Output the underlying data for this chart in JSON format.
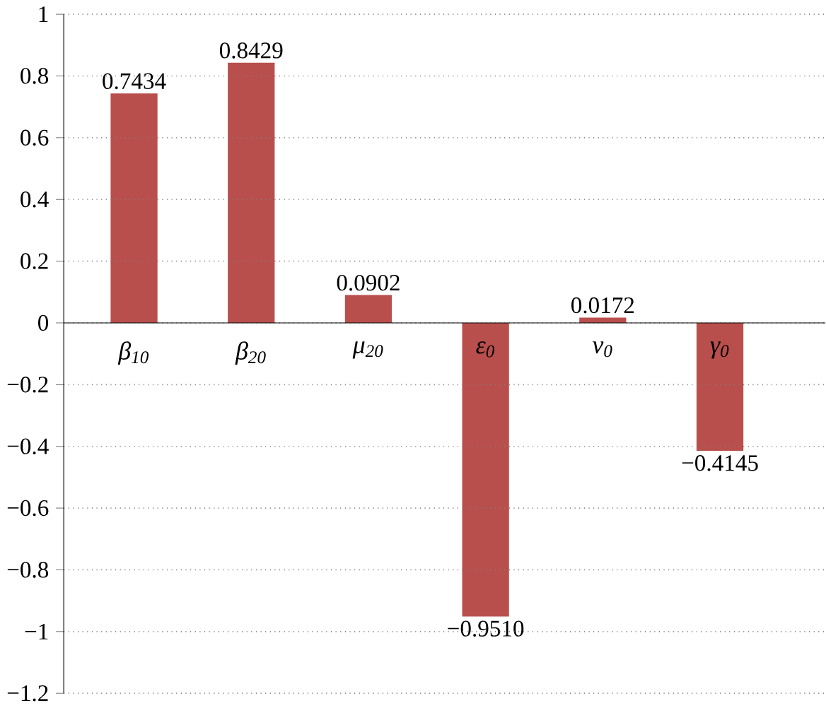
{
  "chart_data": {
    "type": "bar",
    "categories": [
      "β$_{10}$",
      "β$_{20}$",
      "μ$_{20}$",
      "ε$_{0}$",
      "ν$_{0}$",
      "γ$_{0}$"
    ],
    "values": [
      0.7434,
      0.8429,
      0.0902,
      -0.951,
      0.0172,
      -0.4145
    ],
    "value_labels": [
      "0.7434",
      "0.8429",
      "0.0902",
      "−0.9510",
      "0.0172",
      "−0.4145"
    ],
    "color": "#b94f4c",
    "ylim": [
      -1.2,
      1
    ],
    "yticks": [
      {
        "value": -1.2,
        "label": "−1.2"
      },
      {
        "value": -1,
        "label": "−1"
      },
      {
        "value": -0.8,
        "label": "−0.8"
      },
      {
        "value": -0.6,
        "label": "−0.6"
      },
      {
        "value": -0.4,
        "label": "−0.4"
      },
      {
        "value": -0.2,
        "label": "−0.2"
      },
      0,
      0.2,
      0.4,
      0.6,
      0.8,
      1
    ],
    "grid": "y"
  }
}
